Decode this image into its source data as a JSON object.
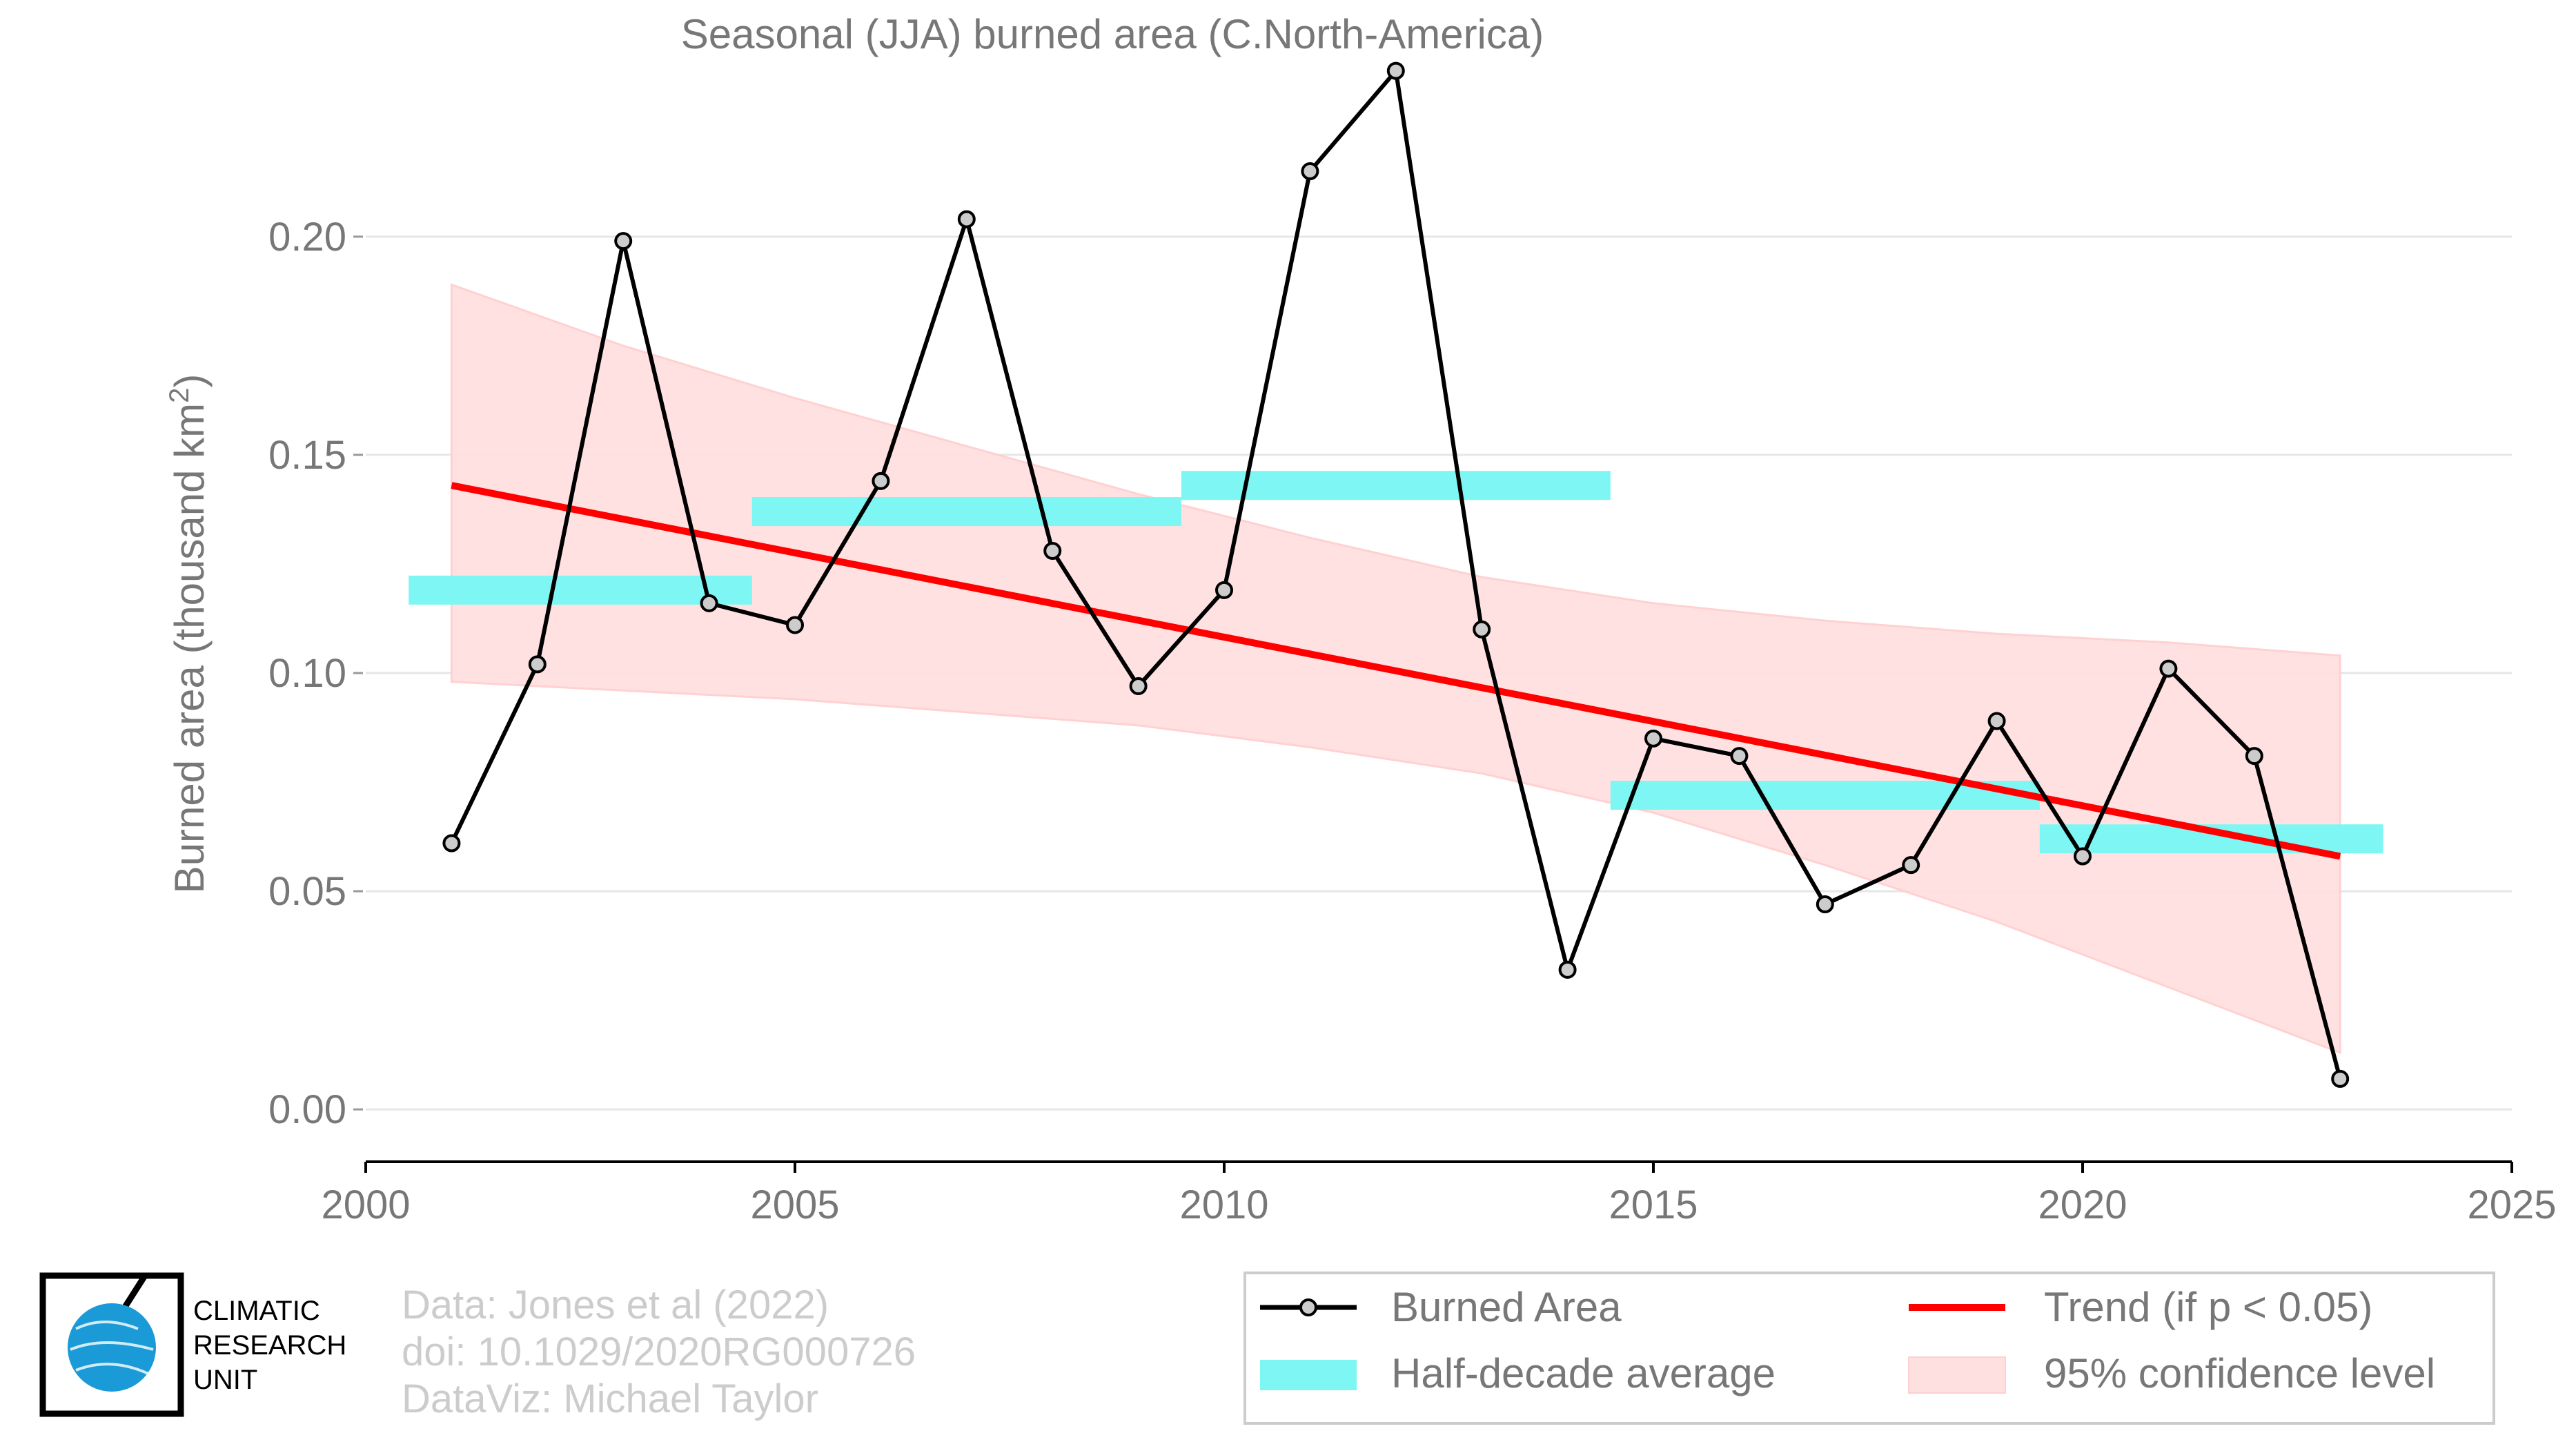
{
  "chart_data": {
    "type": "line",
    "title": "Seasonal (JJA) burned area (C.North-America)",
    "ylabel": "Burned area (thousand km",
    "ylabel_sup": "2",
    "ylabel_close": ")",
    "xlim": [
      2000,
      2025
    ],
    "ylim": [
      -0.012,
      0.24
    ],
    "x_ticks": [
      2000,
      2005,
      2010,
      2015,
      2020,
      2025
    ],
    "y_ticks": [
      0.0,
      0.05,
      0.1,
      0.15,
      0.2
    ],
    "y_tick_labels": [
      "0.00",
      "0.05",
      "0.10",
      "0.15",
      "0.20"
    ],
    "grid": true,
    "legend_position": "bottom-right",
    "series": [
      {
        "name": "Burned Area",
        "color": "#000000",
        "x": [
          2001,
          2002,
          2003,
          2004,
          2005,
          2006,
          2007,
          2008,
          2009,
          2010,
          2011,
          2012,
          2013,
          2014,
          2015,
          2016,
          2017,
          2018,
          2019,
          2020,
          2021,
          2022,
          2023
        ],
        "y": [
          0.061,
          0.102,
          0.199,
          0.116,
          0.111,
          0.144,
          0.204,
          0.128,
          0.097,
          0.119,
          0.215,
          0.238,
          0.11,
          0.032,
          0.085,
          0.081,
          0.047,
          0.056,
          0.089,
          0.058,
          0.101,
          0.081,
          0.007
        ]
      }
    ],
    "trend": {
      "name": "Trend (if p < 0.05)",
      "color": "#ff0000",
      "x": [
        2001,
        2023
      ],
      "y": [
        0.143,
        0.058
      ]
    },
    "confidence_band": {
      "name": "95% confidence level",
      "color": "#ffe0e0",
      "x": [
        2001,
        2003,
        2005,
        2007,
        2009,
        2011,
        2013,
        2015,
        2017,
        2019,
        2021,
        2023
      ],
      "upper": [
        0.189,
        0.175,
        0.163,
        0.152,
        0.141,
        0.131,
        0.122,
        0.116,
        0.112,
        0.109,
        0.107,
        0.104
      ],
      "lower": [
        0.098,
        0.096,
        0.094,
        0.091,
        0.088,
        0.083,
        0.077,
        0.068,
        0.056,
        0.043,
        0.028,
        0.013
      ]
    },
    "half_decade_average": {
      "name": "Half-decade average",
      "color": "#7df6f4",
      "segments": [
        {
          "x0": 2000.5,
          "x1": 2004.5,
          "y": 0.119
        },
        {
          "x0": 2004.5,
          "x1": 2009.5,
          "y": 0.137
        },
        {
          "x0": 2009.5,
          "x1": 2014.5,
          "y": 0.143
        },
        {
          "x0": 2014.5,
          "x1": 2019.5,
          "y": 0.072
        },
        {
          "x0": 2019.5,
          "x1": 2023.5,
          "y": 0.062
        }
      ]
    }
  },
  "legend": {
    "burned_area": "Burned Area",
    "trend": "Trend (if p < 0.05)",
    "half_decade": "Half-decade average",
    "confidence": "95% confidence level"
  },
  "logo": {
    "line1": "CLIMATIC",
    "line2": "RESEARCH",
    "line3": "UNIT"
  },
  "credits": {
    "data": "Data: Jones et al (2022)",
    "doi": "doi: 10.1029/2020RG000726",
    "dataviz": "DataViz: Michael Taylor"
  }
}
